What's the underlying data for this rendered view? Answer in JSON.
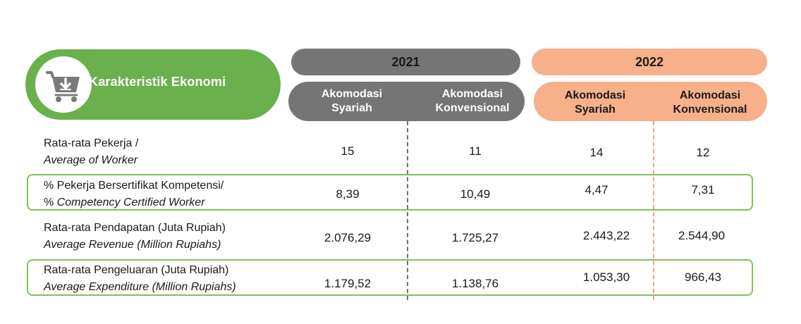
{
  "title": "Karakteristik Ekonomi",
  "icons": {
    "cart": "shopping-cart-download-icon"
  },
  "colors": {
    "green": "#6ab04c",
    "green_border": "#7dc35a",
    "gray": "#757575",
    "orange": "#f7b08a"
  },
  "years": [
    {
      "year": "2021",
      "columns": [
        {
          "line1": "Akomodasi",
          "line2": "Syariah"
        },
        {
          "line1": "Akomodasi",
          "line2": "Konvensional"
        }
      ]
    },
    {
      "year": "2022",
      "columns": [
        {
          "line1": "Akomodasi",
          "line2": "Syariah"
        },
        {
          "line1": "Akomodasi",
          "line2": "Konvensional"
        }
      ]
    }
  ],
  "rows": [
    {
      "label_id": "Rata-rata Pekerja /",
      "label_en": "Average of Worker",
      "values": [
        "15",
        "11",
        "14",
        "12"
      ]
    },
    {
      "label_id": "% Pekerja Bersertifikat Kompetensi/",
      "label_en_prefix": "% ",
      "label_en": "Competency Certified Worker",
      "values": [
        "8,39",
        "10,49",
        "4,47",
        "7,31"
      ]
    },
    {
      "label_id": "Rata-rata Pendapatan (Juta Rupiah)",
      "label_en": "Average Revenue (Million Rupiahs)",
      "values": [
        "2.076,29",
        "1.725,27",
        "2.443,22",
        "2.544,90"
      ]
    },
    {
      "label_id": "Rata-rata Pengeluaran (Juta Rupiah)",
      "label_en": "Average Expenditure (Million Rupiahs)",
      "values": [
        "1.179,52",
        "1.138,76",
        "1.053,30",
        "966,43"
      ]
    }
  ]
}
